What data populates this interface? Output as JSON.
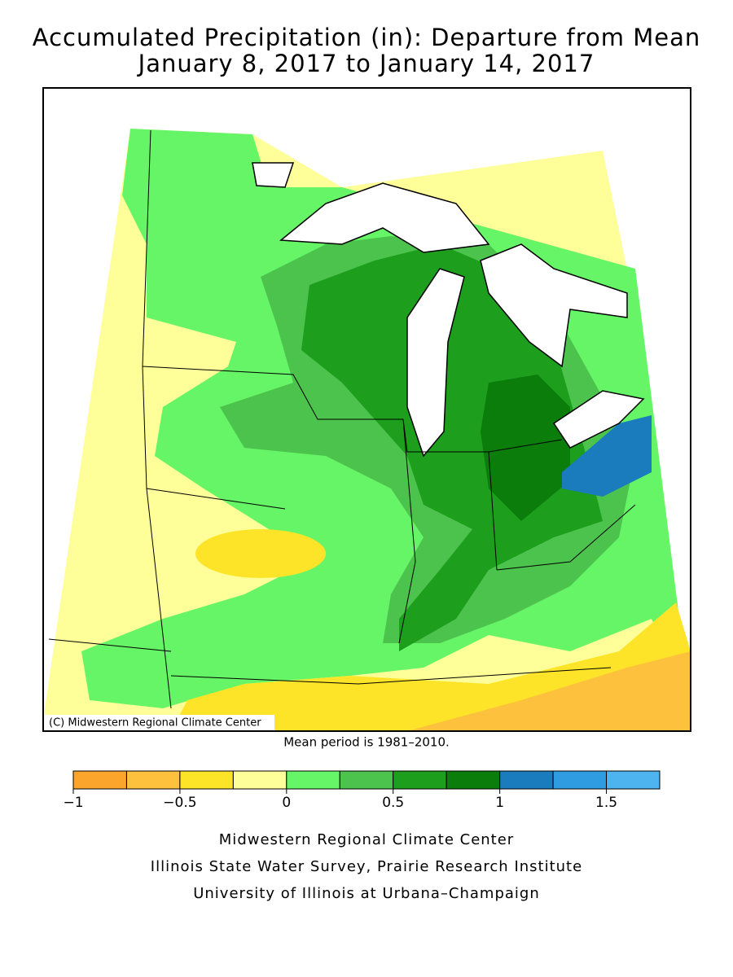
{
  "title": [
    "Accumulated Precipitation (in): Departure from Mean",
    "January 8, 2017 to January 14, 2017"
  ],
  "map": {
    "credit": "(C) Midwestern Regional Climate Center",
    "note": "Mean period is 1981–2010."
  },
  "legend": {
    "bounds": [
      -1,
      -0.75,
      -0.5,
      -0.25,
      0,
      0.25,
      0.5,
      0.75,
      1,
      1.25,
      1.5,
      1.75
    ],
    "colors": [
      "#fba52c",
      "#fdc13d",
      "#fde428",
      "#ffff99",
      "#66f566",
      "#4cc34c",
      "#1d9e1d",
      "#0b7d0b",
      "#1a7bbd",
      "#2f9be0",
      "#4db4f0"
    ],
    "ticks": [
      {
        "value": -1,
        "label": "−1"
      },
      {
        "value": -0.5,
        "label": "−0.5"
      },
      0,
      0.5,
      1,
      1.5
    ]
  },
  "footer": [
    "Midwestern Regional Climate Center",
    "Illinois State Water Survey, Prairie Research Institute",
    "University of Illinois at Urbana–Champaign"
  ]
}
